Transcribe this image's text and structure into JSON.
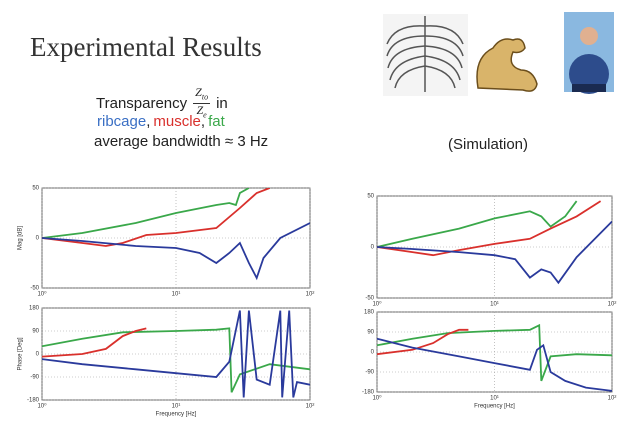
{
  "title": "Experimental Results",
  "transparency": {
    "label": "Transparency",
    "numerator": "Z",
    "numerator_sub": "to",
    "denominator": "Z",
    "denominator_sub": "e",
    "suffix": "in"
  },
  "materials": [
    {
      "name": "ribcage",
      "color": "#3a6fc4"
    },
    {
      "name": "muscle",
      "color": "#d9302c"
    },
    {
      "name": "fat",
      "color": "#3aa84a"
    }
  ],
  "separator": ",",
  "bandwidth": "average bandwidth ≈ 3 Hz",
  "simulation_label": "(Simulation)",
  "chart_data": [
    {
      "type": "line",
      "ylabel": "Mag [dB]",
      "log_x": true,
      "grid": true,
      "xlim": [
        1,
        100
      ],
      "xticks": [
        {
          "value": 1,
          "label": "10⁰"
        },
        {
          "value": 10,
          "label": "10¹"
        },
        {
          "value": 100,
          "label": "10²"
        }
      ],
      "ylim": [
        -50,
        50
      ],
      "yticks": [
        -50,
        0,
        50
      ],
      "series": [
        {
          "color": "#3aa84a",
          "x": [
            1,
            2,
            5,
            10,
            20,
            25,
            28,
            30,
            35
          ],
          "values": [
            0,
            5,
            15,
            25,
            33,
            35,
            33,
            45,
            50
          ]
        },
        {
          "color": "#d9302c",
          "x": [
            1,
            2,
            3,
            4,
            6,
            10,
            20,
            30,
            40,
            50
          ],
          "values": [
            0,
            -5,
            -8,
            -5,
            3,
            5,
            10,
            30,
            45,
            50
          ]
        },
        {
          "color": "#2a3a9c",
          "x": [
            1,
            2,
            5,
            10,
            15,
            20,
            25,
            30,
            35,
            40,
            45,
            60,
            100
          ],
          "values": [
            0,
            -3,
            -8,
            -10,
            -15,
            -25,
            -15,
            -5,
            -25,
            -40,
            -20,
            0,
            15
          ]
        }
      ]
    },
    {
      "type": "line",
      "ylabel": "Phase [Deg]",
      "xlabel": "Frequency [Hz]",
      "log_x": true,
      "grid": true,
      "xlim": [
        1,
        100
      ],
      "xticks": [
        {
          "value": 1,
          "label": "10⁰"
        },
        {
          "value": 10,
          "label": "10¹"
        },
        {
          "value": 100,
          "label": "10²"
        }
      ],
      "ylim": [
        -180,
        180
      ],
      "yticks": [
        -180,
        -90,
        0,
        90,
        180
      ],
      "series": [
        {
          "color": "#3aa84a",
          "x": [
            1,
            2,
            4,
            10,
            20,
            25,
            26,
            30,
            50,
            100
          ],
          "values": [
            30,
            60,
            85,
            90,
            95,
            100,
            -150,
            -80,
            -40,
            -60
          ]
        },
        {
          "color": "#d9302c",
          "x": [
            1,
            2,
            3,
            4,
            5,
            6
          ],
          "values": [
            -10,
            0,
            20,
            70,
            90,
            100
          ]
        },
        {
          "color": "#2a3a9c",
          "x": [
            1,
            2,
            5,
            10,
            20,
            25,
            30,
            32,
            35,
            40,
            50,
            60,
            62,
            70,
            75,
            80,
            100
          ],
          "values": [
            -20,
            -40,
            -60,
            -75,
            -90,
            -30,
            170,
            -170,
            170,
            -100,
            -120,
            170,
            -170,
            170,
            -170,
            -110,
            -120
          ]
        }
      ]
    },
    {
      "type": "line",
      "log_x": true,
      "grid": true,
      "xlim": [
        1,
        100
      ],
      "xticks": [
        {
          "value": 1,
          "label": "10⁰"
        },
        {
          "value": 10,
          "label": "10¹"
        },
        {
          "value": 100,
          "label": "10²"
        }
      ],
      "ylim": [
        -50,
        50
      ],
      "yticks": [
        -50,
        0,
        50
      ],
      "series": [
        {
          "color": "#3aa84a",
          "x": [
            1,
            2,
            5,
            10,
            20,
            25,
            30,
            40,
            50
          ],
          "values": [
            0,
            8,
            18,
            28,
            35,
            30,
            20,
            30,
            45
          ]
        },
        {
          "color": "#d9302c",
          "x": [
            1,
            2,
            3,
            5,
            10,
            20,
            30,
            50,
            80
          ],
          "values": [
            0,
            -5,
            -8,
            -3,
            3,
            8,
            18,
            30,
            45
          ]
        },
        {
          "color": "#2a3a9c",
          "x": [
            1,
            2,
            5,
            10,
            15,
            20,
            25,
            30,
            35,
            50,
            100
          ],
          "values": [
            0,
            -2,
            -5,
            -8,
            -12,
            -30,
            -22,
            -25,
            -35,
            -10,
            25
          ]
        }
      ]
    },
    {
      "type": "line",
      "xlabel": "Frequency [Hz]",
      "log_x": true,
      "grid": true,
      "xlim": [
        1,
        100
      ],
      "xticks": [
        {
          "value": 1,
          "label": "10⁰"
        },
        {
          "value": 10,
          "label": "10¹"
        },
        {
          "value": 100,
          "label": "10²"
        }
      ],
      "ylim": [
        -180,
        180
      ],
      "yticks": [
        -180,
        -90,
        0,
        90,
        180
      ],
      "series": [
        {
          "color": "#3aa84a",
          "x": [
            1,
            2,
            4,
            10,
            20,
            24,
            25,
            30,
            50,
            100
          ],
          "values": [
            30,
            60,
            85,
            95,
            100,
            120,
            -130,
            -20,
            -10,
            -15
          ]
        },
        {
          "color": "#d9302c",
          "x": [
            1,
            2,
            3,
            4,
            5,
            6
          ],
          "values": [
            -10,
            10,
            40,
            80,
            100,
            100
          ]
        },
        {
          "color": "#2a3a9c",
          "x": [
            1,
            2,
            5,
            10,
            20,
            23,
            26,
            30,
            40,
            60,
            100
          ],
          "values": [
            60,
            20,
            -20,
            -50,
            -80,
            10,
            30,
            -90,
            -130,
            -160,
            -175
          ]
        }
      ]
    }
  ]
}
